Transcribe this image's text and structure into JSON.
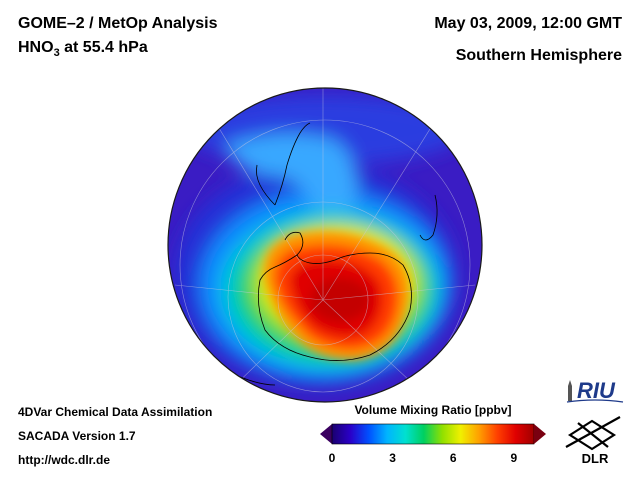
{
  "header": {
    "instrument": "GOME–2 / MetOp Analysis",
    "species_main": "HNO",
    "species_sub": "3",
    "species_level": " at 55.4 hPa",
    "datetime": "May 03, 2009, 12:00 GMT",
    "region": "Southern Hemisphere"
  },
  "footer": {
    "method": "4DVar Chemical Data Assimilation",
    "version": "SACADA Version 1.7",
    "url": "http://wdc.dlr.de"
  },
  "colorbar": {
    "title": "Volume Mixing Ratio [ppbv]",
    "ticks": [
      "0",
      "3",
      "6",
      "9"
    ],
    "min": 0,
    "max": 10,
    "tick_values": [
      0,
      3,
      6,
      9
    ],
    "colors": [
      "#1a0070",
      "#2a00c8",
      "#0050ff",
      "#00b4ff",
      "#00e0d0",
      "#00d060",
      "#90e000",
      "#f0f000",
      "#ffa000",
      "#ff4000",
      "#e00000",
      "#a00000"
    ]
  },
  "logos": {
    "riu": "RIU",
    "dlr": "DLR"
  },
  "map": {
    "projection": "orthographic",
    "hemisphere": "Southern Hemisphere",
    "pressure_level_hpa": 55.4,
    "max_region_ppbv": 10,
    "background_ppbv": 1
  }
}
